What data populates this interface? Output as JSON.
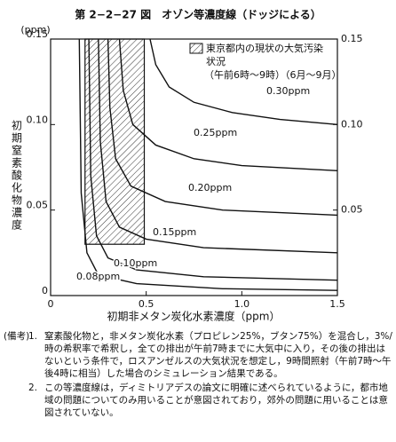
{
  "chart_data": {
    "type": "line",
    "title": "第 2−2−27 図　オゾン等濃度線（ドッジによる）",
    "x_label": "初期非メタン炭化水素濃度（ppm）",
    "y_label": "初期窒素酸化物濃度",
    "y_unit": "(ppm)",
    "xlim": [
      0,
      1.5
    ],
    "xticks": [
      0,
      0.5,
      {
        "value": 1,
        "label": "1.0"
      },
      1.5
    ],
    "ylim": [
      0,
      0.15
    ],
    "yticks": [
      0,
      0.05,
      {
        "value": 0.1,
        "label": "0.10"
      },
      0.15
    ],
    "y2lim": [
      0,
      0.15
    ],
    "y2ticks": [
      0.05,
      {
        "value": 0.1,
        "label": "0.10"
      },
      0.15
    ],
    "region": {
      "label_lines": [
        "東京都内の現状の大気汚染",
        "状況",
        "（午前6時〜9時）（6月〜9月）"
      ],
      "x": [
        0.18,
        0.49
      ],
      "y": [
        0.03,
        0.15
      ]
    },
    "series": [
      {
        "name": "0.30ppm",
        "color": "#111111",
        "x": [
          0.52,
          0.55,
          0.62,
          0.75,
          0.95,
          1.2,
          1.5
        ],
        "values": [
          0.15,
          0.135,
          0.122,
          0.113,
          0.107,
          0.103,
          0.1
        ]
      },
      {
        "name": "0.25ppm",
        "color": "#111111",
        "x": [
          0.36,
          0.38,
          0.43,
          0.55,
          0.75,
          1.0,
          1.5
        ],
        "values": [
          0.15,
          0.12,
          0.1,
          0.088,
          0.08,
          0.076,
          0.073
        ]
      },
      {
        "name": "0.20ppm",
        "color": "#111111",
        "x": [
          0.3,
          0.31,
          0.34,
          0.42,
          0.6,
          0.9,
          1.5
        ],
        "values": [
          0.15,
          0.11,
          0.08,
          0.064,
          0.055,
          0.05,
          0.047
        ]
      },
      {
        "name": "0.15ppm",
        "color": "#111111",
        "x": [
          0.25,
          0.26,
          0.29,
          0.36,
          0.5,
          0.8,
          1.5
        ],
        "values": [
          0.15,
          0.09,
          0.055,
          0.04,
          0.033,
          0.028,
          0.025
        ]
      },
      {
        "name": "0.10ppm",
        "color": "#111111",
        "x": [
          0.2,
          0.21,
          0.24,
          0.3,
          0.45,
          0.8,
          1.5
        ],
        "values": [
          0.15,
          0.07,
          0.035,
          0.022,
          0.015,
          0.011,
          0.009
        ]
      },
      {
        "name": "0.08ppm",
        "color": "#111111",
        "x": [
          0.15,
          0.16,
          0.19,
          0.25,
          0.45,
          0.9,
          1.5
        ],
        "values": [
          0.15,
          0.06,
          0.025,
          0.012,
          0.007,
          0.004,
          0.003
        ]
      }
    ]
  },
  "notes": {
    "heading": "(備考)",
    "items": [
      {
        "number": "1.",
        "text": "窒素酸化物と，非メタン炭化水素（プロピレン25%，ブタン75%）を混合し，3%/時の希釈率で希釈し，全ての排出が午前7時までに大気中に入り，その後の排出はないという条件で，ロスアンゼルスの大気状況を想定し，9時間照射（午前7時〜午後4時に相当）した場合のシミュレーション結果である。"
      },
      {
        "number": "2.",
        "text": "この等濃度線は，ディミトリアデスの論文に明確に述べられているように，都市地域の問題についてのみ用いることが意図されており，郊外の問題に用いることは意図されていない。"
      }
    ]
  }
}
